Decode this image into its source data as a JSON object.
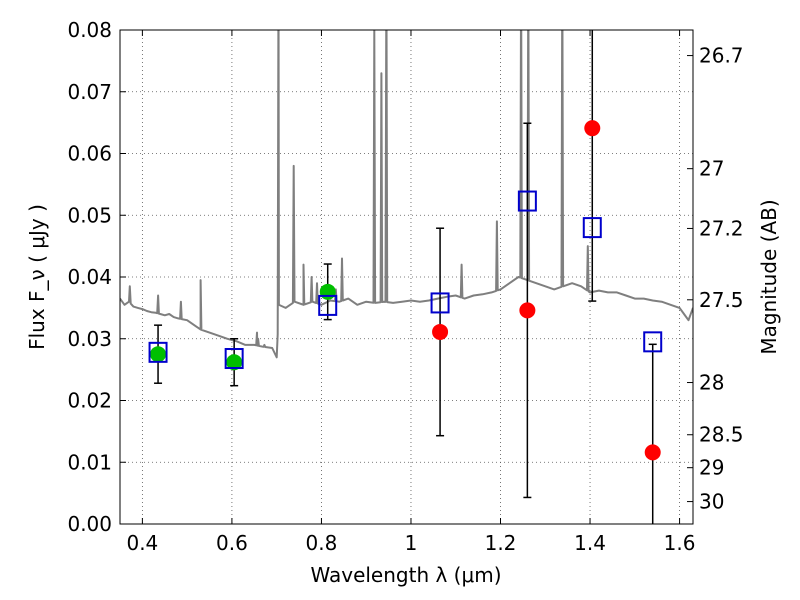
{
  "chart_data": {
    "type": "scatter",
    "title": "",
    "xlabel": "Wavelength  λ (μm)",
    "ylabel": "Flux  F_ν  ( μJy )",
    "y2label": "Magnitude (AB)",
    "xlim": [
      0.35,
      1.63
    ],
    "ylim": [
      0.0,
      0.08
    ],
    "grid": true,
    "legend": "none",
    "xticks": [
      {
        "v": 0.4,
        "label": "0.4"
      },
      {
        "v": 0.6,
        "label": "0.6"
      },
      {
        "v": 0.8,
        "label": "0.8"
      },
      {
        "v": 1.0,
        "label": "1"
      },
      {
        "v": 1.2,
        "label": "1.2"
      },
      {
        "v": 1.4,
        "label": "1.4"
      },
      {
        "v": 1.6,
        "label": "1.6"
      }
    ],
    "yticks": [
      {
        "v": 0.0,
        "label": "0.00"
      },
      {
        "v": 0.01,
        "label": "0.01"
      },
      {
        "v": 0.02,
        "label": "0.02"
      },
      {
        "v": 0.03,
        "label": "0.03"
      },
      {
        "v": 0.04,
        "label": "0.04"
      },
      {
        "v": 0.05,
        "label": "0.05"
      },
      {
        "v": 0.06,
        "label": "0.06"
      },
      {
        "v": 0.07,
        "label": "0.07"
      },
      {
        "v": 0.08,
        "label": "0.08"
      }
    ],
    "y2ticks": [
      {
        "mag": 26.7,
        "label": "26.7"
      },
      {
        "mag": 27,
        "label": "27"
      },
      {
        "mag": 27.2,
        "label": "27.2"
      },
      {
        "mag": 27.5,
        "label": "27.5"
      },
      {
        "mag": 28,
        "label": "28"
      },
      {
        "mag": 28.5,
        "label": "28.5"
      },
      {
        "mag": 29,
        "label": "29"
      },
      {
        "mag": 30,
        "label": "30"
      }
    ],
    "colors": {
      "spectrum": "#7f7f7f",
      "green": "#00bf00",
      "red": "#ff0000",
      "model": "#0000cc",
      "errorbar": "#000000",
      "grid": "#555555"
    },
    "spectrum": {
      "points": [
        [
          0.35,
          0.0365
        ],
        [
          0.36,
          0.0355
        ],
        [
          0.37,
          0.036
        ],
        [
          0.38,
          0.0352
        ],
        [
          0.39,
          0.035
        ],
        [
          0.4,
          0.0348
        ],
        [
          0.41,
          0.0345
        ],
        [
          0.42,
          0.0343
        ],
        [
          0.43,
          0.0342
        ],
        [
          0.44,
          0.034
        ],
        [
          0.45,
          0.0338
        ],
        [
          0.46,
          0.034
        ],
        [
          0.47,
          0.0335
        ],
        [
          0.48,
          0.0333
        ],
        [
          0.5,
          0.033
        ],
        [
          0.52,
          0.032
        ],
        [
          0.53,
          0.0315
        ],
        [
          0.55,
          0.031
        ],
        [
          0.57,
          0.0305
        ],
        [
          0.59,
          0.03
        ],
        [
          0.6,
          0.0298
        ],
        [
          0.61,
          0.0296
        ],
        [
          0.63,
          0.029
        ],
        [
          0.65,
          0.029
        ],
        [
          0.67,
          0.0287
        ],
        [
          0.69,
          0.0285
        ],
        [
          0.7,
          0.027
        ],
        [
          0.705,
          0.0355
        ],
        [
          0.72,
          0.035
        ],
        [
          0.74,
          0.036
        ],
        [
          0.76,
          0.0355
        ],
        [
          0.78,
          0.036
        ],
        [
          0.8,
          0.0355
        ],
        [
          0.82,
          0.0362
        ],
        [
          0.84,
          0.036
        ],
        [
          0.86,
          0.0365
        ],
        [
          0.88,
          0.0355
        ],
        [
          0.9,
          0.036
        ],
        [
          0.92,
          0.0358
        ],
        [
          0.94,
          0.036
        ],
        [
          0.96,
          0.0358
        ],
        [
          0.98,
          0.036
        ],
        [
          1.0,
          0.0362
        ],
        [
          1.02,
          0.036
        ],
        [
          1.04,
          0.0362
        ],
        [
          1.06,
          0.0365
        ],
        [
          1.08,
          0.0368
        ],
        [
          1.1,
          0.037
        ],
        [
          1.12,
          0.0365
        ],
        [
          1.14,
          0.037
        ],
        [
          1.16,
          0.0372
        ],
        [
          1.18,
          0.0375
        ],
        [
          1.2,
          0.038
        ],
        [
          1.22,
          0.039
        ],
        [
          1.24,
          0.04
        ],
        [
          1.26,
          0.0395
        ],
        [
          1.28,
          0.039
        ],
        [
          1.3,
          0.0385
        ],
        [
          1.32,
          0.038
        ],
        [
          1.34,
          0.0385
        ],
        [
          1.36,
          0.039
        ],
        [
          1.38,
          0.0385
        ],
        [
          1.4,
          0.0375
        ],
        [
          1.42,
          0.0378
        ],
        [
          1.44,
          0.0375
        ],
        [
          1.46,
          0.0375
        ],
        [
          1.48,
          0.037
        ],
        [
          1.5,
          0.0365
        ],
        [
          1.52,
          0.0365
        ],
        [
          1.54,
          0.0362
        ],
        [
          1.56,
          0.036
        ],
        [
          1.58,
          0.0355
        ],
        [
          1.6,
          0.035
        ],
        [
          1.61,
          0.034
        ],
        [
          1.62,
          0.033
        ],
        [
          1.63,
          0.035
        ]
      ],
      "emission_lines": [
        [
          0.372,
          0.0385
        ],
        [
          0.435,
          0.037
        ],
        [
          0.486,
          0.036
        ],
        [
          0.53,
          0.0395
        ],
        [
          0.656,
          0.031
        ],
        [
          0.6584,
          0.03
        ],
        [
          0.6725,
          0.029
        ],
        [
          0.704,
          0.09
        ],
        [
          0.738,
          0.058
        ],
        [
          0.76,
          0.042
        ],
        [
          0.778,
          0.04
        ],
        [
          0.79,
          0.039
        ],
        [
          0.832,
          0.038
        ],
        [
          0.846,
          0.043
        ],
        [
          0.918,
          0.08
        ],
        [
          0.934,
          0.073
        ],
        [
          0.945,
          0.09
        ],
        [
          1.113,
          0.042
        ],
        [
          1.192,
          0.049
        ],
        [
          1.246,
          0.09
        ],
        [
          1.262,
          0.09
        ],
        [
          1.338,
          0.09
        ],
        [
          1.395,
          0.045
        ]
      ]
    },
    "series": [
      {
        "marker": "circle",
        "color": "#00bf00",
        "points": [
          {
            "x": 0.435,
            "y": 0.0275,
            "err": 0.0047
          },
          {
            "x": 0.605,
            "y": 0.0262,
            "err": 0.0038
          },
          {
            "x": 0.814,
            "y": 0.0376,
            "err": 0.0045
          }
        ]
      },
      {
        "marker": "circle",
        "color": "#ff0000",
        "points": [
          {
            "x": 1.065,
            "y": 0.0311,
            "err": 0.0168
          },
          {
            "x": 1.26,
            "y": 0.0346,
            "err": 0.0303
          },
          {
            "x": 1.405,
            "y": 0.0641,
            "err": 0.028
          },
          {
            "x": 1.54,
            "y": 0.0116,
            "err": 0.0175
          }
        ]
      },
      {
        "marker": "open-square",
        "color": "#0000cc",
        "points": [
          {
            "x": 0.435,
            "y": 0.0278
          },
          {
            "x": 0.605,
            "y": 0.0268
          },
          {
            "x": 0.814,
            "y": 0.0354
          },
          {
            "x": 1.065,
            "y": 0.0358
          },
          {
            "x": 1.26,
            "y": 0.0523
          },
          {
            "x": 1.405,
            "y": 0.048
          },
          {
            "x": 1.54,
            "y": 0.0295
          }
        ]
      }
    ]
  }
}
